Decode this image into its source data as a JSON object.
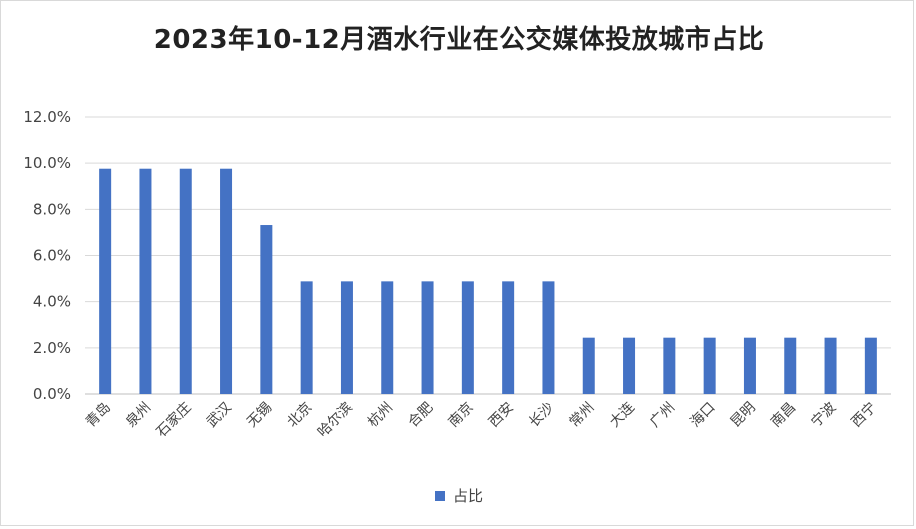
{
  "chart_data": {
    "type": "bar",
    "title": "2023年10-12月酒水行业在公交媒体投放城市占比",
    "categories": [
      "青岛",
      "泉州",
      "石家庄",
      "武汉",
      "无锡",
      "北京",
      "哈尔滨",
      "杭州",
      "合肥",
      "南京",
      "西安",
      "长沙",
      "常州",
      "大连",
      "广州",
      "海口",
      "昆明",
      "南昌",
      "宁波",
      "西宁"
    ],
    "series": [
      {
        "name": "占比",
        "color": "#4472c4",
        "values": [
          9.76,
          9.76,
          9.76,
          9.76,
          7.32,
          4.88,
          4.88,
          4.88,
          4.88,
          4.88,
          4.88,
          4.88,
          2.44,
          2.44,
          2.44,
          2.44,
          2.44,
          2.44,
          2.44,
          2.44
        ]
      }
    ],
    "ylim": [
      0,
      12
    ],
    "yticks": [
      "0.0%",
      "2.0%",
      "4.0%",
      "6.0%",
      "8.0%",
      "10.0%",
      "12.0%"
    ],
    "grid": true,
    "legend_position": "bottom"
  }
}
